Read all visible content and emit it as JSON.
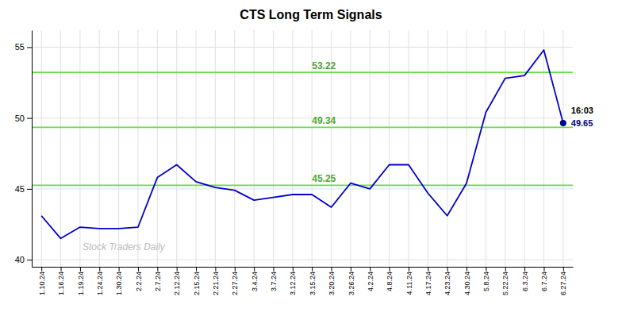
{
  "chart_data": {
    "type": "line",
    "title": "CTS Long Term Signals",
    "categories": [
      "1.10.24",
      "1.16.24",
      "1.19.24",
      "1.24.24",
      "1.30.24",
      "2.2.24",
      "2.7.24",
      "2.12.24",
      "2.15.24",
      "2.21.24",
      "2.27.24",
      "3.4.24",
      "3.7.24",
      "3.12.24",
      "3.15.24",
      "3.20.24",
      "3.26.24",
      "4.2.24",
      "4.8.24",
      "4.11.24",
      "4.17.24",
      "4.23.24",
      "4.30.24",
      "5.8.24",
      "5.22.24",
      "6.3.24",
      "6.7.24",
      "6.27.24"
    ],
    "values": [
      43.1,
      41.5,
      42.3,
      42.2,
      42.2,
      42.3,
      45.8,
      46.7,
      45.5,
      45.1,
      44.9,
      44.2,
      44.4,
      44.6,
      44.6,
      43.7,
      45.4,
      45.0,
      46.7,
      46.7,
      44.7,
      43.1,
      45.4,
      50.4,
      52.8,
      53.0,
      54.8,
      49.65
    ],
    "color": "#0000cc",
    "ylim": [
      39.5,
      56.2
    ],
    "yticks": [
      40,
      45,
      50,
      55
    ],
    "grid": true,
    "hlines": [
      {
        "value": 45.25,
        "label": "45.25",
        "color": "#66dd44"
      },
      {
        "value": 49.34,
        "label": "49.34",
        "color": "#66dd44"
      },
      {
        "value": 53.22,
        "label": "53.22",
        "color": "#66dd44"
      }
    ],
    "last_point": {
      "marker": "circle",
      "color": "#00008B"
    },
    "annotations": [
      "16:03",
      "49.65"
    ],
    "watermark": "Stock Traders Daily"
  }
}
